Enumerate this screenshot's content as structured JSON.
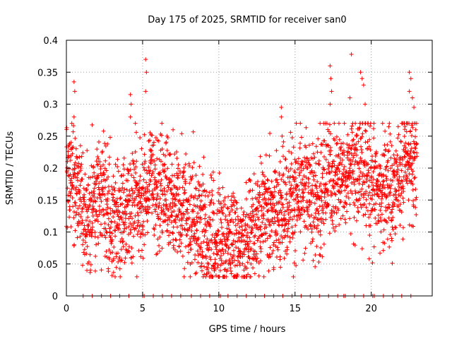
{
  "chart_data": {
    "type": "scatter",
    "title": "Day 175 of 2025, SRMTID for receiver san0",
    "xlabel": "GPS time / hours",
    "ylabel": "SRMTID / TECUs",
    "xlim": [
      0,
      24
    ],
    "ylim": [
      0,
      0.4
    ],
    "xticks": [
      "0",
      "5",
      "10",
      "15",
      "20"
    ],
    "yticks": [
      "0",
      "0.05",
      "0.1",
      "0.15",
      "0.2",
      "0.25",
      "0.3",
      "0.35",
      "0.4"
    ],
    "xtick_values": [
      0,
      5,
      10,
      15,
      20
    ],
    "ytick_values": [
      0,
      0.05,
      0.1,
      0.15,
      0.2,
      0.25,
      0.3,
      0.35,
      0.4
    ],
    "grid": true,
    "marker": "+",
    "color": "#ff0000",
    "trend": [
      {
        "x": 0.0,
        "y": 0.19
      },
      {
        "x": 0.5,
        "y": 0.18
      },
      {
        "x": 1.0,
        "y": 0.13
      },
      {
        "x": 1.5,
        "y": 0.12
      },
      {
        "x": 2.0,
        "y": 0.15
      },
      {
        "x": 2.5,
        "y": 0.16
      },
      {
        "x": 3.0,
        "y": 0.12
      },
      {
        "x": 3.5,
        "y": 0.11
      },
      {
        "x": 4.0,
        "y": 0.14
      },
      {
        "x": 4.5,
        "y": 0.15
      },
      {
        "x": 5.0,
        "y": 0.14
      },
      {
        "x": 5.5,
        "y": 0.18
      },
      {
        "x": 6.0,
        "y": 0.16
      },
      {
        "x": 6.5,
        "y": 0.17
      },
      {
        "x": 7.0,
        "y": 0.13
      },
      {
        "x": 7.5,
        "y": 0.14
      },
      {
        "x": 8.0,
        "y": 0.12
      },
      {
        "x": 8.5,
        "y": 0.12
      },
      {
        "x": 9.0,
        "y": 0.11
      },
      {
        "x": 9.5,
        "y": 0.09
      },
      {
        "x": 10.0,
        "y": 0.08
      },
      {
        "x": 10.5,
        "y": 0.08
      },
      {
        "x": 11.0,
        "y": 0.09
      },
      {
        "x": 11.5,
        "y": 0.08
      },
      {
        "x": 12.0,
        "y": 0.09
      },
      {
        "x": 12.5,
        "y": 0.11
      },
      {
        "x": 13.0,
        "y": 0.13
      },
      {
        "x": 13.5,
        "y": 0.13
      },
      {
        "x": 14.0,
        "y": 0.14
      },
      {
        "x": 14.5,
        "y": 0.14
      },
      {
        "x": 15.0,
        "y": 0.15
      },
      {
        "x": 15.5,
        "y": 0.17
      },
      {
        "x": 16.0,
        "y": 0.16
      },
      {
        "x": 16.5,
        "y": 0.15
      },
      {
        "x": 17.0,
        "y": 0.18
      },
      {
        "x": 17.5,
        "y": 0.19
      },
      {
        "x": 18.0,
        "y": 0.18
      },
      {
        "x": 18.5,
        "y": 0.19
      },
      {
        "x": 19.0,
        "y": 0.2
      },
      {
        "x": 19.5,
        "y": 0.19
      },
      {
        "x": 20.0,
        "y": 0.18
      },
      {
        "x": 20.5,
        "y": 0.16
      },
      {
        "x": 21.0,
        "y": 0.17
      },
      {
        "x": 21.5,
        "y": 0.18
      },
      {
        "x": 22.0,
        "y": 0.19
      },
      {
        "x": 22.5,
        "y": 0.21
      },
      {
        "x": 23.0,
        "y": 0.22
      }
    ],
    "spread": 0.045,
    "points_per_hour": 120,
    "spikes": [
      {
        "x": 0.5,
        "y": 0.335
      },
      {
        "x": 0.55,
        "y": 0.32
      },
      {
        "x": 0.5,
        "y": 0.28
      },
      {
        "x": 4.2,
        "y": 0.315
      },
      {
        "x": 4.2,
        "y": 0.28
      },
      {
        "x": 4.25,
        "y": 0.3
      },
      {
        "x": 5.2,
        "y": 0.37
      },
      {
        "x": 5.25,
        "y": 0.35
      },
      {
        "x": 5.2,
        "y": 0.32
      },
      {
        "x": 6.6,
        "y": 0.25
      },
      {
        "x": 7.0,
        "y": 0.26
      },
      {
        "x": 14.1,
        "y": 0.295
      },
      {
        "x": 14.1,
        "y": 0.28
      },
      {
        "x": 14.15,
        "y": 0.25
      },
      {
        "x": 17.3,
        "y": 0.36
      },
      {
        "x": 17.35,
        "y": 0.34
      },
      {
        "x": 17.4,
        "y": 0.32
      },
      {
        "x": 17.3,
        "y": 0.3
      },
      {
        "x": 18.7,
        "y": 0.378
      },
      {
        "x": 18.6,
        "y": 0.31
      },
      {
        "x": 19.3,
        "y": 0.35
      },
      {
        "x": 19.4,
        "y": 0.34
      },
      {
        "x": 19.5,
        "y": 0.33
      },
      {
        "x": 19.6,
        "y": 0.3
      },
      {
        "x": 22.5,
        "y": 0.35
      },
      {
        "x": 22.6,
        "y": 0.34
      },
      {
        "x": 22.5,
        "y": 0.32
      },
      {
        "x": 22.7,
        "y": 0.31
      },
      {
        "x": 22.8,
        "y": 0.295
      }
    ],
    "zero_markers": [
      1.1,
      1.7,
      2.3,
      2.9,
      3.5,
      4.1,
      5.0,
      5.1,
      5.7,
      6.3,
      6.9,
      7.5,
      8.2,
      8.8,
      9.4,
      10.0,
      10.1,
      10.6,
      11.2,
      11.8,
      12.4,
      13.0,
      13.6,
      14.2,
      14.8,
      15.4,
      16.0,
      16.6,
      17.2,
      17.8,
      18.2,
      18.3,
      18.9,
      19.5,
      20.1,
      20.2,
      20.8,
      21.4,
      22.0,
      22.6
    ]
  }
}
